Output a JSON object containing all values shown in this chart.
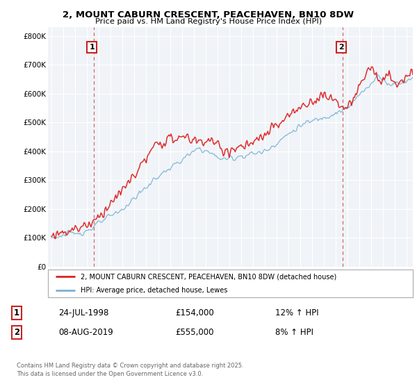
{
  "title_line1": "2, MOUNT CABURN CRESCENT, PEACEHAVEN, BN10 8DW",
  "title_line2": "Price paid vs. HM Land Registry's House Price Index (HPI)",
  "legend_red": "2, MOUNT CABURN CRESCENT, PEACEHAVEN, BN10 8DW (detached house)",
  "legend_blue": "HPI: Average price, detached house, Lewes",
  "annotation1_date": "24-JUL-1998",
  "annotation1_price": "£154,000",
  "annotation1_hpi": "12% ↑ HPI",
  "annotation2_date": "08-AUG-2019",
  "annotation2_price": "£555,000",
  "annotation2_hpi": "8% ↑ HPI",
  "footer": "Contains HM Land Registry data © Crown copyright and database right 2025.\nThis data is licensed under the Open Government Licence v3.0.",
  "red_color": "#dd2222",
  "blue_color": "#7ab0d4",
  "vline_color": "#cc4444",
  "background_color": "#f0f4f8",
  "ylim": [
    0,
    830000
  ],
  "yticks": [
    0,
    100000,
    200000,
    300000,
    400000,
    500000,
    600000,
    700000,
    800000
  ],
  "ytick_labels": [
    "£0",
    "£100K",
    "£200K",
    "£300K",
    "£400K",
    "£500K",
    "£600K",
    "£700K",
    "£800K"
  ],
  "sale1_x": 1998.55,
  "sale1_y": 154000,
  "sale2_x": 2019.6,
  "sale2_y": 555000,
  "xmin": 1995.0,
  "xmax": 2025.5
}
